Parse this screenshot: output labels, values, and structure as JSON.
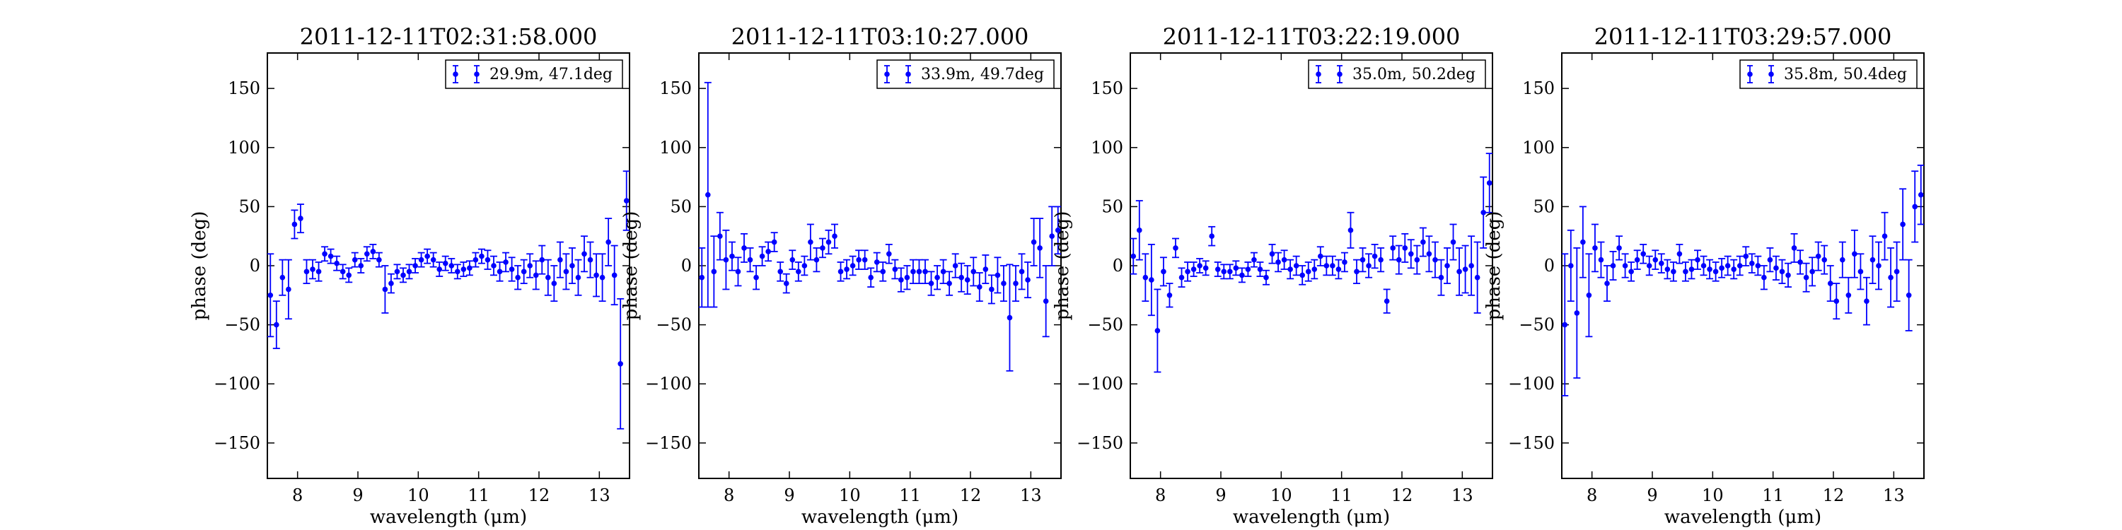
{
  "chart_data": [
    {
      "type": "scatter",
      "title": "2011-12-11T02:31:58.000",
      "xlabel": "wavelength (μm)",
      "ylabel": "phase (deg)",
      "xlim": [
        7.5,
        13.5
      ],
      "ylim": [
        -180,
        180
      ],
      "xticks": [
        8,
        9,
        10,
        11,
        12,
        13
      ],
      "yticks": [
        -150,
        -100,
        -50,
        0,
        50,
        100,
        150
      ],
      "xtick_labels": [
        "8",
        "9",
        "10",
        "11",
        "12",
        "13"
      ],
      "ytick_labels": [
        "−150",
        "−100",
        "−50",
        "0",
        "50",
        "100",
        "150"
      ],
      "grid": false,
      "legend_position": "top-right",
      "series": [
        {
          "name": "29.9m, 47.1deg",
          "color": "#0000ff",
          "x": [
            7.55,
            7.65,
            7.75,
            7.85,
            7.95,
            8.05,
            8.15,
            8.25,
            8.35,
            8.45,
            8.55,
            8.65,
            8.75,
            8.85,
            8.95,
            9.05,
            9.15,
            9.25,
            9.35,
            9.45,
            9.55,
            9.65,
            9.75,
            9.85,
            9.95,
            10.05,
            10.15,
            10.25,
            10.35,
            10.45,
            10.55,
            10.65,
            10.75,
            10.85,
            10.95,
            11.05,
            11.15,
            11.25,
            11.35,
            11.45,
            11.55,
            11.65,
            11.75,
            11.85,
            11.95,
            12.05,
            12.15,
            12.25,
            12.35,
            12.45,
            12.55,
            12.65,
            12.75,
            12.85,
            12.95,
            13.05,
            13.15,
            13.25,
            13.35,
            13.45
          ],
          "y": [
            -25,
            -50,
            -10,
            -20,
            35,
            40,
            -5,
            -3,
            -5,
            10,
            8,
            2,
            -5,
            -8,
            5,
            0,
            10,
            12,
            5,
            -20,
            -15,
            -5,
            -8,
            -5,
            0,
            5,
            8,
            5,
            -3,
            2,
            0,
            -5,
            -3,
            -2,
            5,
            8,
            5,
            0,
            -5,
            3,
            -3,
            -10,
            -5,
            0,
            -8,
            5,
            -10,
            -15,
            5,
            -5,
            0,
            -10,
            10,
            5,
            -8,
            -10,
            20,
            -8,
            -83,
            55
          ],
          "yerr": [
            35,
            20,
            15,
            25,
            12,
            12,
            10,
            8,
            8,
            6,
            6,
            6,
            6,
            6,
            6,
            6,
            6,
            6,
            6,
            20,
            8,
            6,
            6,
            6,
            6,
            6,
            6,
            6,
            6,
            6,
            6,
            6,
            6,
            6,
            6,
            6,
            8,
            8,
            8,
            8,
            10,
            10,
            10,
            10,
            12,
            12,
            15,
            15,
            15,
            15,
            15,
            15,
            15,
            15,
            18,
            20,
            20,
            25,
            55,
            25
          ]
        }
      ]
    },
    {
      "type": "scatter",
      "title": "2011-12-11T03:10:27.000",
      "xlabel": "wavelength (μm)",
      "ylabel": "phase (deg)",
      "xlim": [
        7.5,
        13.5
      ],
      "ylim": [
        -180,
        180
      ],
      "xticks": [
        8,
        9,
        10,
        11,
        12,
        13
      ],
      "yticks": [
        -150,
        -100,
        -50,
        0,
        50,
        100,
        150
      ],
      "xtick_labels": [
        "8",
        "9",
        "10",
        "11",
        "12",
        "13"
      ],
      "ytick_labels": [
        "−150",
        "−100",
        "−50",
        "0",
        "50",
        "100",
        "150"
      ],
      "grid": false,
      "legend_position": "top-right",
      "series": [
        {
          "name": "33.9m, 49.7deg",
          "color": "#0000ff",
          "x": [
            7.55,
            7.65,
            7.75,
            7.85,
            7.95,
            8.05,
            8.15,
            8.25,
            8.35,
            8.45,
            8.55,
            8.65,
            8.75,
            8.85,
            8.95,
            9.05,
            9.15,
            9.25,
            9.35,
            9.45,
            9.55,
            9.65,
            9.75,
            9.85,
            9.95,
            10.05,
            10.15,
            10.25,
            10.35,
            10.45,
            10.55,
            10.65,
            10.75,
            10.85,
            10.95,
            11.05,
            11.15,
            11.25,
            11.35,
            11.45,
            11.55,
            11.65,
            11.75,
            11.85,
            11.95,
            12.05,
            12.15,
            12.25,
            12.35,
            12.45,
            12.55,
            12.65,
            12.75,
            12.85,
            12.95,
            13.05,
            13.15,
            13.25,
            13.35,
            13.45
          ],
          "y": [
            -10,
            60,
            -5,
            25,
            5,
            8,
            -5,
            15,
            5,
            -10,
            8,
            12,
            20,
            -5,
            -15,
            5,
            -5,
            0,
            20,
            5,
            15,
            20,
            25,
            -5,
            -3,
            0,
            5,
            5,
            -10,
            3,
            -5,
            10,
            -3,
            -12,
            -10,
            -5,
            -5,
            -5,
            -15,
            -10,
            -5,
            -15,
            0,
            -10,
            -12,
            -5,
            -18,
            -3,
            -20,
            -8,
            -15,
            -44,
            -15,
            -5,
            -12,
            20,
            15,
            -30,
            25,
            30
          ],
          "yerr": [
            25,
            95,
            30,
            20,
            25,
            12,
            12,
            12,
            10,
            10,
            8,
            8,
            8,
            8,
            8,
            8,
            8,
            8,
            15,
            10,
            8,
            10,
            10,
            8,
            8,
            8,
            8,
            8,
            8,
            8,
            8,
            8,
            8,
            10,
            10,
            10,
            10,
            10,
            10,
            10,
            10,
            10,
            10,
            12,
            12,
            12,
            12,
            12,
            12,
            15,
            15,
            45,
            15,
            15,
            15,
            20,
            25,
            30,
            25,
            20
          ]
        }
      ]
    },
    {
      "type": "scatter",
      "title": "2011-12-11T03:22:19.000",
      "xlabel": "wavelength (μm)",
      "ylabel": "phase (deg)",
      "xlim": [
        7.5,
        13.5
      ],
      "ylim": [
        -180,
        180
      ],
      "xticks": [
        8,
        9,
        10,
        11,
        12,
        13
      ],
      "yticks": [
        -150,
        -100,
        -50,
        0,
        50,
        100,
        150
      ],
      "xtick_labels": [
        "8",
        "9",
        "10",
        "11",
        "12",
        "13"
      ],
      "ytick_labels": [
        "−150",
        "−100",
        "−50",
        "0",
        "50",
        "100",
        "150"
      ],
      "grid": false,
      "legend_position": "top-right",
      "series": [
        {
          "name": "35.0m, 50.2deg",
          "color": "#0000ff",
          "x": [
            7.55,
            7.65,
            7.75,
            7.85,
            7.95,
            8.05,
            8.15,
            8.25,
            8.35,
            8.45,
            8.55,
            8.65,
            8.75,
            8.85,
            8.95,
            9.05,
            9.15,
            9.25,
            9.35,
            9.45,
            9.55,
            9.65,
            9.75,
            9.85,
            9.95,
            10.05,
            10.15,
            10.25,
            10.35,
            10.45,
            10.55,
            10.65,
            10.75,
            10.85,
            10.95,
            11.05,
            11.15,
            11.25,
            11.35,
            11.45,
            11.55,
            11.65,
            11.75,
            11.85,
            11.95,
            12.05,
            12.15,
            12.25,
            12.35,
            12.45,
            12.55,
            12.65,
            12.75,
            12.85,
            12.95,
            13.05,
            13.15,
            13.25,
            13.35,
            13.45
          ],
          "y": [
            8,
            30,
            -10,
            -12,
            -55,
            -5,
            -25,
            15,
            -10,
            -5,
            -3,
            0,
            -2,
            25,
            -3,
            -5,
            -5,
            -2,
            -8,
            -3,
            5,
            -3,
            -10,
            10,
            3,
            5,
            -3,
            0,
            -8,
            -5,
            -3,
            8,
            0,
            0,
            -3,
            3,
            30,
            -5,
            5,
            0,
            8,
            5,
            -30,
            15,
            5,
            15,
            10,
            5,
            20,
            10,
            5,
            -10,
            0,
            20,
            -5,
            -3,
            0,
            -10,
            45,
            70
          ],
          "yerr": [
            15,
            25,
            20,
            30,
            35,
            12,
            10,
            8,
            8,
            8,
            6,
            6,
            6,
            8,
            6,
            6,
            6,
            6,
            6,
            6,
            6,
            6,
            6,
            8,
            8,
            8,
            8,
            8,
            8,
            8,
            8,
            8,
            8,
            8,
            8,
            8,
            15,
            10,
            10,
            10,
            10,
            10,
            10,
            10,
            12,
            12,
            12,
            12,
            12,
            15,
            15,
            15,
            15,
            15,
            20,
            20,
            25,
            30,
            30,
            25
          ]
        }
      ]
    },
    {
      "type": "scatter",
      "title": "2011-12-11T03:29:57.000",
      "xlabel": "wavelength (μm)",
      "ylabel": "phase (deg)",
      "xlim": [
        7.5,
        13.5
      ],
      "ylim": [
        -180,
        180
      ],
      "xticks": [
        8,
        9,
        10,
        11,
        12,
        13
      ],
      "yticks": [
        -150,
        -100,
        -50,
        0,
        50,
        100,
        150
      ],
      "xtick_labels": [
        "8",
        "9",
        "10",
        "11",
        "12",
        "13"
      ],
      "ytick_labels": [
        "−150",
        "−100",
        "−50",
        "0",
        "50",
        "100",
        "150"
      ],
      "grid": false,
      "legend_position": "top-right",
      "series": [
        {
          "name": "35.8m, 50.4deg",
          "color": "#0000ff",
          "x": [
            7.55,
            7.65,
            7.75,
            7.85,
            7.95,
            8.05,
            8.15,
            8.25,
            8.35,
            8.45,
            8.55,
            8.65,
            8.75,
            8.85,
            8.95,
            9.05,
            9.15,
            9.25,
            9.35,
            9.45,
            9.55,
            9.65,
            9.75,
            9.85,
            9.95,
            10.05,
            10.15,
            10.25,
            10.35,
            10.45,
            10.55,
            10.65,
            10.75,
            10.85,
            10.95,
            11.05,
            11.15,
            11.25,
            11.35,
            11.45,
            11.55,
            11.65,
            11.75,
            11.85,
            11.95,
            12.05,
            12.15,
            12.25,
            12.35,
            12.45,
            12.55,
            12.65,
            12.75,
            12.85,
            12.95,
            13.05,
            13.15,
            13.25,
            13.35,
            13.45
          ],
          "y": [
            -50,
            0,
            -40,
            20,
            -25,
            15,
            5,
            -15,
            0,
            15,
            0,
            -5,
            5,
            10,
            0,
            5,
            2,
            -3,
            -5,
            10,
            -5,
            -3,
            5,
            0,
            -3,
            -5,
            -2,
            0,
            -3,
            0,
            8,
            2,
            0,
            -10,
            5,
            -2,
            -5,
            -8,
            15,
            3,
            -10,
            -5,
            8,
            5,
            -15,
            -30,
            5,
            -25,
            10,
            -5,
            -30,
            5,
            0,
            25,
            -10,
            -5,
            35,
            -25,
            50,
            60
          ],
          "yerr": [
            60,
            30,
            55,
            30,
            35,
            20,
            15,
            15,
            12,
            10,
            10,
            8,
            8,
            8,
            8,
            8,
            8,
            8,
            8,
            8,
            8,
            8,
            8,
            8,
            8,
            8,
            8,
            8,
            8,
            8,
            8,
            8,
            8,
            10,
            10,
            10,
            10,
            10,
            12,
            10,
            12,
            12,
            12,
            12,
            15,
            15,
            15,
            15,
            20,
            15,
            20,
            20,
            20,
            20,
            25,
            25,
            30,
            30,
            30,
            25
          ]
        }
      ]
    }
  ]
}
